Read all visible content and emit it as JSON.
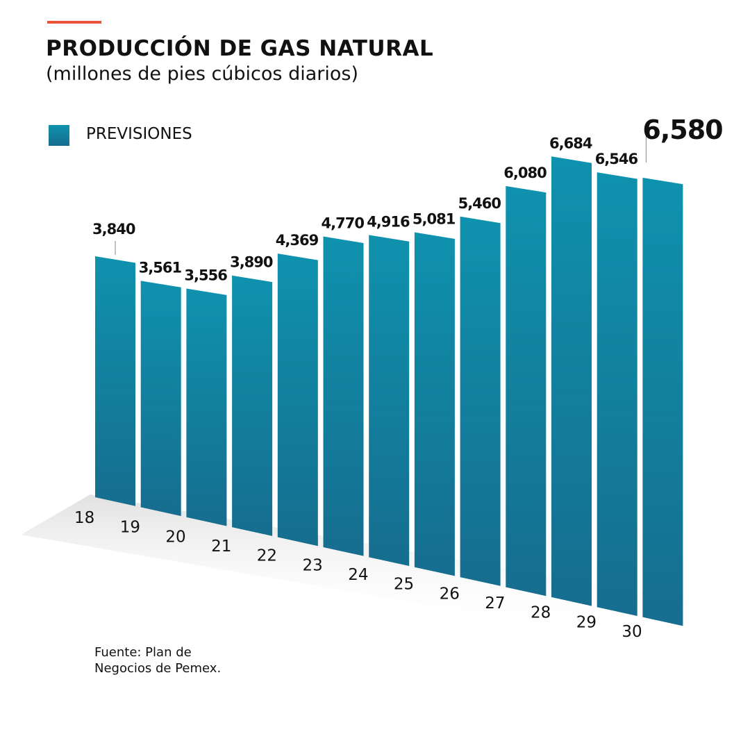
{
  "title": "PRODUCCIÓN DE GAS NATURAL",
  "subtitle": "(millones de pies cúbicos diarios)",
  "legend": {
    "label": "PREVISIONES",
    "color": "#0f8fab"
  },
  "source": {
    "line1": "Fuente: Plan de",
    "line2": "Negocios de Pemex."
  },
  "colors": {
    "accent": "#e8533a",
    "bar_top": "#0f92ae",
    "bar_bottom": "#166d8f"
  },
  "chart_data": {
    "type": "bar",
    "categories": [
      "18",
      "19",
      "20",
      "21",
      "22",
      "23",
      "24",
      "25",
      "26",
      "27",
      "28",
      "29",
      "30"
    ],
    "values": [
      3840,
      3561,
      3556,
      3890,
      4369,
      4770,
      4916,
      5081,
      5460,
      6080,
      6684,
      6546,
      6580
    ],
    "value_labels": [
      "3,840",
      "3,561",
      "3,556",
      "3,890",
      "4,369",
      "4,770",
      "4,916",
      "5,081",
      "5,460",
      "6,080",
      "6,684",
      "6,546",
      "6,580"
    ],
    "highlighted_label_index": 12,
    "perspective": "3d-tilted",
    "grid": false
  }
}
